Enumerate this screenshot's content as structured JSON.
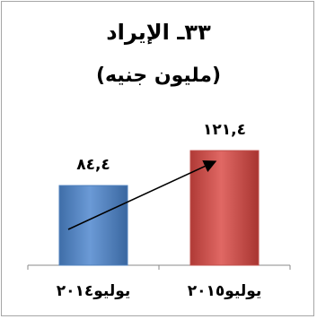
{
  "chart_data": {
    "type": "bar",
    "title": "٣٣ـ الإيراد",
    "subtitle": "(مليون جنيه)",
    "categories": [
      "يوليو٢٠١٤",
      "يوليو٢٠١٥"
    ],
    "values": [
      84.4,
      121.4
    ],
    "value_labels": [
      "٨٤,٤",
      "١٢١,٤"
    ],
    "bar_colors": [
      "#4f81bd",
      "#c0504d"
    ],
    "ylim": [
      0,
      130
    ],
    "grid": false,
    "legend": "none",
    "trend_arrow": true
  }
}
